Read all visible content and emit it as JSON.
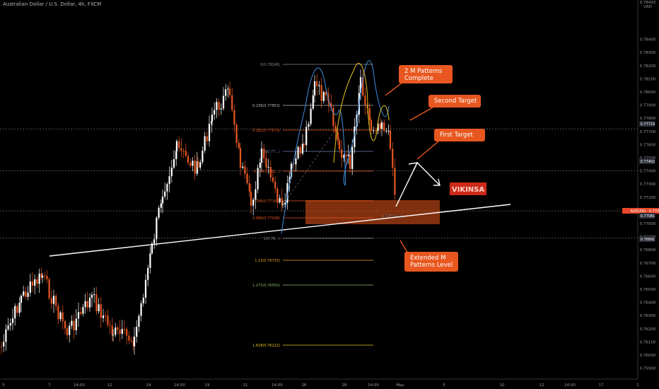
{
  "header": {
    "title": "Australian Dollar / U.S. Dollar, 4h, FXCM"
  },
  "chart_data": {
    "type": "candlestick",
    "currency_label": "USD",
    "y_axis": {
      "ticks": [
        "0.78400",
        "0.78300",
        "0.78200",
        "0.78100",
        "0.78000",
        "0.77900",
        "0.77800",
        "0.77700",
        "0.77600",
        "0.77500",
        "0.77400",
        "0.77300",
        "0.77200",
        "0.77100",
        "0.77000",
        "0.76900",
        "0.76800",
        "0.76700",
        "0.76600",
        "0.76500",
        "0.76400",
        "0.76300",
        "0.76200",
        "0.76100",
        "0.76000",
        "0.75900"
      ],
      "top_label": "0.78420"
    },
    "x_axis": {
      "ticks": [
        "5",
        "7",
        "14:00",
        "12",
        "14",
        "14:00",
        "19",
        "21",
        "14:00",
        "26",
        "28",
        "14:00",
        "May",
        "5",
        "10",
        "12",
        "14:00",
        "17",
        "1"
      ]
    },
    "price_badges": [
      {
        "text": "0.77719",
        "color": "#2a2e39"
      },
      {
        "text": "0.77402",
        "color": "#2a2e39"
      },
      {
        "text": "AUDUSD · 0.77096",
        "color": "#e8492a"
      },
      {
        "text": "0.77081",
        "color": "#2a2e39"
      },
      {
        "text": "0.76891",
        "color": "#2a2e39"
      }
    ],
    "fib_levels": [
      {
        "label": "0(0.78148)",
        "color": "#8a8a8a"
      },
      {
        "label": "0.236(0.77853)",
        "color": "#bbbbbb"
      },
      {
        "label": "0.382(0.77670)",
        "color": "#e8571f"
      },
      {
        "label": "0.5(0.77...)",
        "color": "#6f7fb5"
      },
      {
        "label": "0.618(0.773...)",
        "color": "#e8571f"
      },
      {
        "label": "0.786(0.77164)",
        "color": "#e8571f"
      },
      {
        "label": "0.886(0.77038)",
        "color": "#e8571f"
      },
      {
        "label": "1(0.76...)",
        "color": "#8a8a8a"
      },
      {
        "label": "1.13(0.76733)",
        "color": "#e8a21f"
      },
      {
        "label": "1.272(0.76555)",
        "color": "#8dbb6a"
      },
      {
        "label": "1.618(0.76122)",
        "color": "#e8c51f"
      }
    ],
    "annotations": {
      "m_patterns": "2 M Patterns\nComplete",
      "second_target": "Second Target",
      "first_target": "First Target",
      "extended": "Extended M\nPatterns Level",
      "fcp": "FCP Zone",
      "brand": "VIKINSA"
    },
    "candles_note": "AUDUSD 4h candles, white = bullish, orange = bearish",
    "colors": {
      "bull": "#ffffff",
      "bear": "#e8571f",
      "bg": "#000000",
      "grid": "#5a5a5a"
    }
  }
}
